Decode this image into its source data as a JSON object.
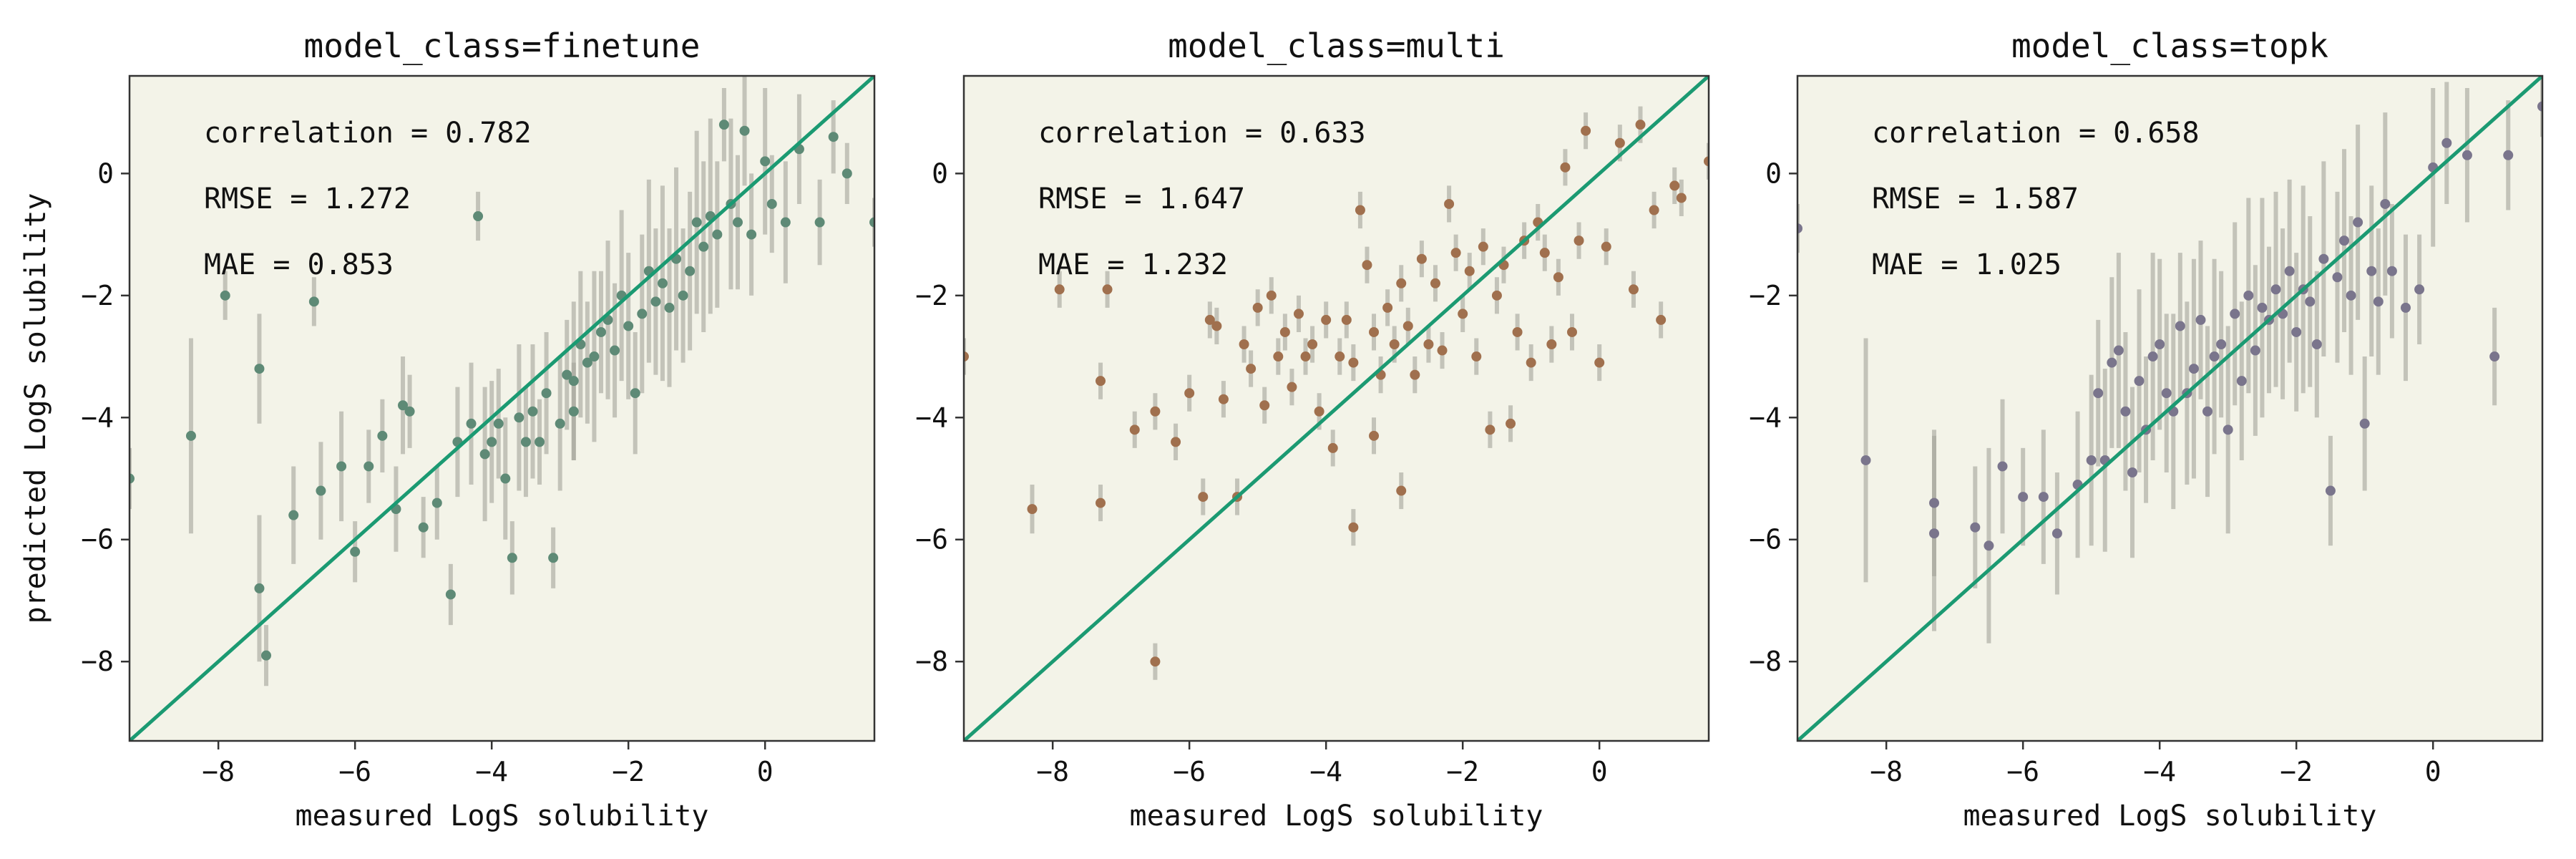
{
  "chart_data": [
    {
      "type": "scatter",
      "title": "model_class=finetune",
      "xlabel": "measured LogS solubility",
      "ylabel": "predicted LogS solubility",
      "xlim": [
        -9.3,
        1.6
      ],
      "ylim": [
        -9.3,
        1.6
      ],
      "xticks": [
        -8,
        -6,
        -4,
        -2,
        0
      ],
      "yticks": [
        -8,
        -6,
        -4,
        -2,
        0
      ],
      "point_color": "#5e8a76",
      "identity_line": true,
      "identity_color": "#1b9a72",
      "stats": [
        "correlation = 0.782",
        "RMSE = 1.272",
        "MAE = 0.853"
      ],
      "points": [
        {
          "x": -9.3,
          "y": -5.0,
          "err": 0.5
        },
        {
          "x": -8.4,
          "y": -4.3,
          "err": 1.6
        },
        {
          "x": -7.9,
          "y": -2.0,
          "err": 0.4
        },
        {
          "x": -7.4,
          "y": -6.8,
          "err": 1.2
        },
        {
          "x": -7.4,
          "y": -3.2,
          "err": 0.9
        },
        {
          "x": -7.3,
          "y": -7.9,
          "err": 0.5
        },
        {
          "x": -6.9,
          "y": -5.6,
          "err": 0.8
        },
        {
          "x": -6.6,
          "y": -2.1,
          "err": 0.4
        },
        {
          "x": -6.5,
          "y": -5.2,
          "err": 0.8
        },
        {
          "x": -6.2,
          "y": -4.8,
          "err": 0.9
        },
        {
          "x": -6.0,
          "y": -6.2,
          "err": 0.5
        },
        {
          "x": -5.8,
          "y": -4.8,
          "err": 0.6
        },
        {
          "x": -5.6,
          "y": -4.3,
          "err": 0.6
        },
        {
          "x": -5.4,
          "y": -5.5,
          "err": 0.7
        },
        {
          "x": -5.3,
          "y": -3.8,
          "err": 0.8
        },
        {
          "x": -5.2,
          "y": -3.9,
          "err": 0.6
        },
        {
          "x": -5.0,
          "y": -5.8,
          "err": 0.5
        },
        {
          "x": -4.8,
          "y": -5.4,
          "err": 0.6
        },
        {
          "x": -4.6,
          "y": -6.9,
          "err": 0.5
        },
        {
          "x": -4.5,
          "y": -4.4,
          "err": 0.9
        },
        {
          "x": -4.3,
          "y": -4.1,
          "err": 1.0
        },
        {
          "x": -4.2,
          "y": -0.7,
          "err": 0.4
        },
        {
          "x": -4.1,
          "y": -4.6,
          "err": 1.1
        },
        {
          "x": -4.0,
          "y": -4.4,
          "err": 1.0
        },
        {
          "x": -3.9,
          "y": -4.1,
          "err": 0.9
        },
        {
          "x": -3.8,
          "y": -5.0,
          "err": 1.0
        },
        {
          "x": -3.7,
          "y": -6.3,
          "err": 0.6
        },
        {
          "x": -3.6,
          "y": -4.0,
          "err": 1.2
        },
        {
          "x": -3.5,
          "y": -4.4,
          "err": 0.9
        },
        {
          "x": -3.4,
          "y": -3.9,
          "err": 1.1
        },
        {
          "x": -3.3,
          "y": -4.4,
          "err": 0.7
        },
        {
          "x": -3.2,
          "y": -3.6,
          "err": 1.0
        },
        {
          "x": -3.1,
          "y": -6.3,
          "err": 0.5
        },
        {
          "x": -3.0,
          "y": -4.1,
          "err": 1.1
        },
        {
          "x": -2.9,
          "y": -3.3,
          "err": 0.9
        },
        {
          "x": -2.8,
          "y": -3.4,
          "err": 1.3
        },
        {
          "x": -2.8,
          "y": -3.9,
          "err": 0.8
        },
        {
          "x": -2.7,
          "y": -2.8,
          "err": 1.2
        },
        {
          "x": -2.6,
          "y": -3.1,
          "err": 1.0
        },
        {
          "x": -2.5,
          "y": -3.0,
          "err": 1.4
        },
        {
          "x": -2.4,
          "y": -2.6,
          "err": 1.0
        },
        {
          "x": -2.3,
          "y": -2.4,
          "err": 1.3
        },
        {
          "x": -2.2,
          "y": -2.9,
          "err": 1.1
        },
        {
          "x": -2.1,
          "y": -2.0,
          "err": 1.4
        },
        {
          "x": -2.0,
          "y": -2.5,
          "err": 1.2
        },
        {
          "x": -1.9,
          "y": -3.6,
          "err": 1.0
        },
        {
          "x": -1.8,
          "y": -2.3,
          "err": 1.3
        },
        {
          "x": -1.7,
          "y": -1.6,
          "err": 1.5
        },
        {
          "x": -1.6,
          "y": -2.1,
          "err": 1.2
        },
        {
          "x": -1.5,
          "y": -1.8,
          "err": 1.6
        },
        {
          "x": -1.4,
          "y": -2.2,
          "err": 1.3
        },
        {
          "x": -1.3,
          "y": -1.4,
          "err": 1.5
        },
        {
          "x": -1.2,
          "y": -2.0,
          "err": 1.1
        },
        {
          "x": -1.1,
          "y": -1.6,
          "err": 1.3
        },
        {
          "x": -1.0,
          "y": -0.8,
          "err": 1.5
        },
        {
          "x": -0.9,
          "y": -1.2,
          "err": 1.4
        },
        {
          "x": -0.8,
          "y": -0.7,
          "err": 1.6
        },
        {
          "x": -0.7,
          "y": -1.0,
          "err": 1.2
        },
        {
          "x": -0.6,
          "y": 0.8,
          "err": 0.6
        },
        {
          "x": -0.5,
          "y": -0.5,
          "err": 1.4
        },
        {
          "x": -0.4,
          "y": -0.8,
          "err": 1.1
        },
        {
          "x": -0.3,
          "y": 0.7,
          "err": 0.9
        },
        {
          "x": -0.2,
          "y": -1.0,
          "err": 1.0
        },
        {
          "x": 0.0,
          "y": 0.2,
          "err": 1.2
        },
        {
          "x": 0.1,
          "y": -0.5,
          "err": 0.8
        },
        {
          "x": 0.3,
          "y": -0.8,
          "err": 1.0
        },
        {
          "x": 0.5,
          "y": 0.4,
          "err": 0.9
        },
        {
          "x": 0.8,
          "y": -0.8,
          "err": 0.7
        },
        {
          "x": 1.0,
          "y": 0.6,
          "err": 0.6
        },
        {
          "x": 1.2,
          "y": 0.0,
          "err": 0.5
        },
        {
          "x": 1.6,
          "y": -0.8,
          "err": 0.4
        }
      ]
    },
    {
      "type": "scatter",
      "title": "model_class=multi",
      "xlabel": "measured LogS solubility",
      "ylabel": "",
      "xlim": [
        -9.3,
        1.6
      ],
      "ylim": [
        -9.3,
        1.6
      ],
      "xticks": [
        -8,
        -6,
        -4,
        -2,
        0
      ],
      "yticks": [
        -8,
        -6,
        -4,
        -2,
        0
      ],
      "point_color": "#a0704e",
      "identity_line": true,
      "identity_color": "#1b9a72",
      "stats": [
        "correlation = 0.633",
        "RMSE = 1.647",
        "MAE = 1.232"
      ],
      "points": [
        {
          "x": -9.3,
          "y": -3.0,
          "err": 0.3
        },
        {
          "x": -8.3,
          "y": -5.5,
          "err": 0.4
        },
        {
          "x": -7.9,
          "y": -1.9,
          "err": 0.3
        },
        {
          "x": -7.2,
          "y": -1.9,
          "err": 0.3
        },
        {
          "x": -7.3,
          "y": -3.4,
          "err": 0.3
        },
        {
          "x": -7.3,
          "y": -5.4,
          "err": 0.3
        },
        {
          "x": -6.8,
          "y": -4.2,
          "err": 0.3
        },
        {
          "x": -6.5,
          "y": -8.0,
          "err": 0.3
        },
        {
          "x": -6.5,
          "y": -3.9,
          "err": 0.3
        },
        {
          "x": -6.2,
          "y": -4.4,
          "err": 0.3
        },
        {
          "x": -6.0,
          "y": -3.6,
          "err": 0.3
        },
        {
          "x": -5.8,
          "y": -5.3,
          "err": 0.3
        },
        {
          "x": -5.7,
          "y": -2.4,
          "err": 0.3
        },
        {
          "x": -5.6,
          "y": -2.5,
          "err": 0.3
        },
        {
          "x": -5.5,
          "y": -3.7,
          "err": 0.3
        },
        {
          "x": -5.3,
          "y": -5.3,
          "err": 0.3
        },
        {
          "x": -5.2,
          "y": -2.8,
          "err": 0.3
        },
        {
          "x": -5.1,
          "y": -3.2,
          "err": 0.3
        },
        {
          "x": -5.0,
          "y": -2.2,
          "err": 0.3
        },
        {
          "x": -4.9,
          "y": -3.8,
          "err": 0.3
        },
        {
          "x": -4.8,
          "y": -2.0,
          "err": 0.3
        },
        {
          "x": -4.7,
          "y": -3.0,
          "err": 0.3
        },
        {
          "x": -4.6,
          "y": -2.6,
          "err": 0.3
        },
        {
          "x": -4.5,
          "y": -3.5,
          "err": 0.3
        },
        {
          "x": -4.4,
          "y": -2.3,
          "err": 0.3
        },
        {
          "x": -4.3,
          "y": -3.0,
          "err": 0.3
        },
        {
          "x": -4.2,
          "y": -2.8,
          "err": 0.3
        },
        {
          "x": -4.1,
          "y": -3.9,
          "err": 0.3
        },
        {
          "x": -4.0,
          "y": -2.4,
          "err": 0.3
        },
        {
          "x": -3.9,
          "y": -4.5,
          "err": 0.3
        },
        {
          "x": -3.8,
          "y": -3.0,
          "err": 0.3
        },
        {
          "x": -3.7,
          "y": -2.4,
          "err": 0.3
        },
        {
          "x": -3.6,
          "y": -3.1,
          "err": 0.3
        },
        {
          "x": -3.6,
          "y": -5.8,
          "err": 0.3
        },
        {
          "x": -3.5,
          "y": -0.6,
          "err": 0.3
        },
        {
          "x": -3.4,
          "y": -1.5,
          "err": 0.3
        },
        {
          "x": -3.3,
          "y": -4.3,
          "err": 0.3
        },
        {
          "x": -3.3,
          "y": -2.6,
          "err": 0.3
        },
        {
          "x": -3.2,
          "y": -3.3,
          "err": 0.3
        },
        {
          "x": -3.1,
          "y": -2.2,
          "err": 0.3
        },
        {
          "x": -3.0,
          "y": -2.8,
          "err": 0.3
        },
        {
          "x": -2.9,
          "y": -5.2,
          "err": 0.3
        },
        {
          "x": -2.9,
          "y": -1.8,
          "err": 0.3
        },
        {
          "x": -2.8,
          "y": -2.5,
          "err": 0.3
        },
        {
          "x": -2.7,
          "y": -3.3,
          "err": 0.3
        },
        {
          "x": -2.6,
          "y": -1.4,
          "err": 0.3
        },
        {
          "x": -2.5,
          "y": -2.8,
          "err": 0.3
        },
        {
          "x": -2.4,
          "y": -1.8,
          "err": 0.3
        },
        {
          "x": -2.3,
          "y": -2.9,
          "err": 0.3
        },
        {
          "x": -2.2,
          "y": -0.5,
          "err": 0.3
        },
        {
          "x": -2.1,
          "y": -1.3,
          "err": 0.3
        },
        {
          "x": -2.0,
          "y": -2.3,
          "err": 0.3
        },
        {
          "x": -1.9,
          "y": -1.6,
          "err": 0.3
        },
        {
          "x": -1.8,
          "y": -3.0,
          "err": 0.3
        },
        {
          "x": -1.7,
          "y": -1.2,
          "err": 0.3
        },
        {
          "x": -1.6,
          "y": -4.2,
          "err": 0.3
        },
        {
          "x": -1.5,
          "y": -2.0,
          "err": 0.3
        },
        {
          "x": -1.4,
          "y": -1.5,
          "err": 0.3
        },
        {
          "x": -1.3,
          "y": -4.1,
          "err": 0.3
        },
        {
          "x": -1.2,
          "y": -2.6,
          "err": 0.3
        },
        {
          "x": -1.1,
          "y": -1.1,
          "err": 0.3
        },
        {
          "x": -1.0,
          "y": -3.1,
          "err": 0.3
        },
        {
          "x": -0.9,
          "y": -0.8,
          "err": 0.3
        },
        {
          "x": -0.8,
          "y": -1.3,
          "err": 0.3
        },
        {
          "x": -0.7,
          "y": -2.8,
          "err": 0.3
        },
        {
          "x": -0.6,
          "y": -1.7,
          "err": 0.3
        },
        {
          "x": -0.5,
          "y": 0.1,
          "err": 0.3
        },
        {
          "x": -0.4,
          "y": -2.6,
          "err": 0.3
        },
        {
          "x": -0.3,
          "y": -1.1,
          "err": 0.3
        },
        {
          "x": -0.2,
          "y": 0.7,
          "err": 0.3
        },
        {
          "x": 0.0,
          "y": -3.1,
          "err": 0.3
        },
        {
          "x": 0.1,
          "y": -1.2,
          "err": 0.3
        },
        {
          "x": 0.3,
          "y": 0.5,
          "err": 0.3
        },
        {
          "x": 0.5,
          "y": -1.9,
          "err": 0.3
        },
        {
          "x": 0.6,
          "y": 0.8,
          "err": 0.3
        },
        {
          "x": 0.8,
          "y": -0.6,
          "err": 0.3
        },
        {
          "x": 0.9,
          "y": -2.4,
          "err": 0.3
        },
        {
          "x": 1.1,
          "y": -0.2,
          "err": 0.3
        },
        {
          "x": 1.2,
          "y": -0.4,
          "err": 0.3
        },
        {
          "x": 1.6,
          "y": 0.2,
          "err": 0.3
        }
      ]
    },
    {
      "type": "scatter",
      "title": "model_class=topk",
      "xlabel": "measured LogS solubility",
      "ylabel": "",
      "xlim": [
        -9.3,
        1.6
      ],
      "ylim": [
        -9.3,
        1.6
      ],
      "xticks": [
        -8,
        -6,
        -4,
        -2,
        0
      ],
      "yticks": [
        -8,
        -6,
        -4,
        -2,
        0
      ],
      "point_color": "#7a758c",
      "identity_line": true,
      "identity_color": "#1b9a72",
      "stats": [
        "correlation = 0.658",
        "RMSE = 1.587",
        "MAE = 1.025"
      ],
      "points": [
        {
          "x": -9.3,
          "y": -0.9,
          "err": 0.4
        },
        {
          "x": -8.3,
          "y": -4.7,
          "err": 2.0
        },
        {
          "x": -7.3,
          "y": -5.4,
          "err": 1.2
        },
        {
          "x": -7.3,
          "y": -5.9,
          "err": 1.6
        },
        {
          "x": -6.7,
          "y": -5.8,
          "err": 1.0
        },
        {
          "x": -6.5,
          "y": -6.1,
          "err": 1.6
        },
        {
          "x": -6.3,
          "y": -4.8,
          "err": 1.1
        },
        {
          "x": -6.0,
          "y": -5.3,
          "err": 0.8
        },
        {
          "x": -5.7,
          "y": -5.3,
          "err": 1.1
        },
        {
          "x": -5.5,
          "y": -5.9,
          "err": 1.0
        },
        {
          "x": -5.2,
          "y": -5.1,
          "err": 1.2
        },
        {
          "x": -5.0,
          "y": -4.7,
          "err": 1.4
        },
        {
          "x": -4.9,
          "y": -3.6,
          "err": 1.2
        },
        {
          "x": -4.8,
          "y": -4.7,
          "err": 1.5
        },
        {
          "x": -4.7,
          "y": -3.1,
          "err": 1.4
        },
        {
          "x": -4.6,
          "y": -2.9,
          "err": 1.6
        },
        {
          "x": -4.5,
          "y": -3.9,
          "err": 1.3
        },
        {
          "x": -4.4,
          "y": -4.9,
          "err": 1.4
        },
        {
          "x": -4.3,
          "y": -3.4,
          "err": 1.5
        },
        {
          "x": -4.2,
          "y": -4.2,
          "err": 1.2
        },
        {
          "x": -4.1,
          "y": -3.0,
          "err": 1.7
        },
        {
          "x": -4.0,
          "y": -2.8,
          "err": 1.4
        },
        {
          "x": -3.9,
          "y": -3.6,
          "err": 1.3
        },
        {
          "x": -3.8,
          "y": -3.9,
          "err": 1.6
        },
        {
          "x": -3.7,
          "y": -2.5,
          "err": 1.2
        },
        {
          "x": -3.6,
          "y": -3.6,
          "err": 1.5
        },
        {
          "x": -3.5,
          "y": -3.2,
          "err": 1.8
        },
        {
          "x": -3.4,
          "y": -2.4,
          "err": 1.3
        },
        {
          "x": -3.3,
          "y": -3.9,
          "err": 1.4
        },
        {
          "x": -3.2,
          "y": -3.0,
          "err": 1.6
        },
        {
          "x": -3.1,
          "y": -2.8,
          "err": 1.2
        },
        {
          "x": -3.0,
          "y": -4.2,
          "err": 1.7
        },
        {
          "x": -2.9,
          "y": -2.3,
          "err": 1.5
        },
        {
          "x": -2.8,
          "y": -3.4,
          "err": 1.3
        },
        {
          "x": -2.7,
          "y": -2.0,
          "err": 1.6
        },
        {
          "x": -2.6,
          "y": -2.9,
          "err": 1.4
        },
        {
          "x": -2.5,
          "y": -2.2,
          "err": 1.8
        },
        {
          "x": -2.4,
          "y": -2.4,
          "err": 1.2
        },
        {
          "x": -2.3,
          "y": -1.9,
          "err": 1.6
        },
        {
          "x": -2.2,
          "y": -2.3,
          "err": 1.4
        },
        {
          "x": -2.1,
          "y": -1.6,
          "err": 1.5
        },
        {
          "x": -2.0,
          "y": -2.6,
          "err": 1.3
        },
        {
          "x": -1.9,
          "y": -1.9,
          "err": 1.7
        },
        {
          "x": -1.8,
          "y": -2.1,
          "err": 1.4
        },
        {
          "x": -1.7,
          "y": -2.8,
          "err": 1.2
        },
        {
          "x": -1.6,
          "y": -1.4,
          "err": 1.6
        },
        {
          "x": -1.5,
          "y": -5.2,
          "err": 0.9
        },
        {
          "x": -1.4,
          "y": -1.7,
          "err": 1.4
        },
        {
          "x": -1.3,
          "y": -1.1,
          "err": 1.5
        },
        {
          "x": -1.2,
          "y": -2.0,
          "err": 1.3
        },
        {
          "x": -1.1,
          "y": -0.8,
          "err": 1.6
        },
        {
          "x": -1.0,
          "y": -4.1,
          "err": 1.1
        },
        {
          "x": -0.9,
          "y": -1.6,
          "err": 1.4
        },
        {
          "x": -0.8,
          "y": -2.1,
          "err": 1.2
        },
        {
          "x": -0.7,
          "y": -0.5,
          "err": 1.5
        },
        {
          "x": -0.6,
          "y": -1.6,
          "err": 1.1
        },
        {
          "x": -0.4,
          "y": -2.2,
          "err": 1.2
        },
        {
          "x": -0.2,
          "y": -1.9,
          "err": 0.9
        },
        {
          "x": 0.0,
          "y": 0.1,
          "err": 1.3
        },
        {
          "x": 0.2,
          "y": 0.5,
          "err": 1.0
        },
        {
          "x": 0.5,
          "y": 0.3,
          "err": 1.1
        },
        {
          "x": 0.9,
          "y": -3.0,
          "err": 0.8
        },
        {
          "x": 1.1,
          "y": 0.3,
          "err": 0.9
        },
        {
          "x": 1.6,
          "y": 1.1,
          "err": 0.5
        }
      ]
    }
  ]
}
